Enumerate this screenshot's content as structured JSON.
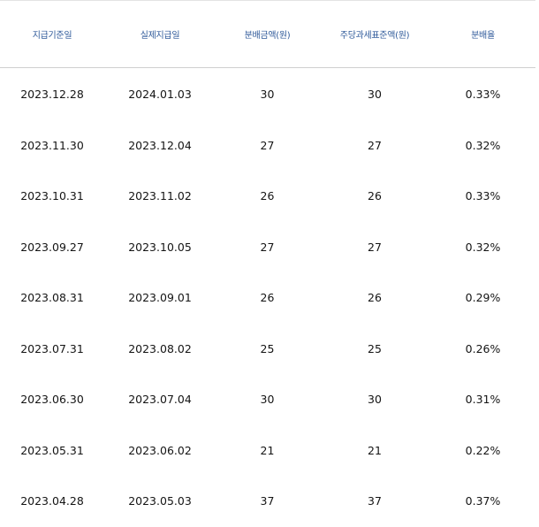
{
  "table": {
    "columns": [
      "지급기준일",
      "실제지급일",
      "분배금액(원)",
      "주당과세표준액(원)",
      "분배율"
    ],
    "rows": [
      [
        "2023.12.28",
        "2024.01.03",
        "30",
        "30",
        "0.33%"
      ],
      [
        "2023.11.30",
        "2023.12.04",
        "27",
        "27",
        "0.32%"
      ],
      [
        "2023.10.31",
        "2023.11.02",
        "26",
        "26",
        "0.33%"
      ],
      [
        "2023.09.27",
        "2023.10.05",
        "27",
        "27",
        "0.32%"
      ],
      [
        "2023.08.31",
        "2023.09.01",
        "26",
        "26",
        "0.29%"
      ],
      [
        "2023.07.31",
        "2023.08.02",
        "25",
        "25",
        "0.26%"
      ],
      [
        "2023.06.30",
        "2023.07.04",
        "30",
        "30",
        "0.31%"
      ],
      [
        "2023.05.31",
        "2023.06.02",
        "21",
        "21",
        "0.22%"
      ],
      [
        "2023.04.28",
        "2023.05.03",
        "37",
        "37",
        "0.37%"
      ]
    ]
  },
  "colors": {
    "header_text": "#2f5a9a",
    "body_text": "#141414",
    "divider": "#cfcfcf"
  }
}
